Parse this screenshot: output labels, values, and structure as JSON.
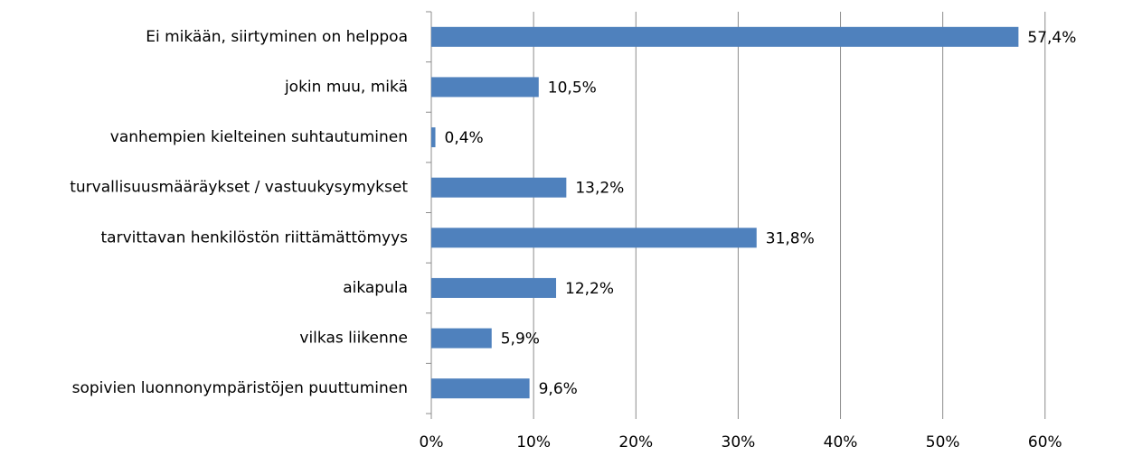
{
  "chart_data": {
    "type": "bar",
    "orientation": "horizontal",
    "categories": [
      "Ei mikään, siirtyminen on helppoa",
      "jokin muu, mikä",
      "vanhempien kielteinen suhtautuminen",
      "turvallisuusmääräykset / vastuukysymykset",
      "tarvittavan henkilöstön riittämättömyys",
      "aikapula",
      "vilkas liikenne",
      "sopivien luonnonympäristöjen puuttuminen"
    ],
    "values": [
      57.4,
      10.5,
      0.4,
      13.2,
      31.8,
      12.2,
      5.9,
      9.6
    ],
    "value_labels": [
      "57,4%",
      "10,5%",
      "0,4%",
      "13,2%",
      "31,8%",
      "12,2%",
      "5,9%",
      "9,6%"
    ],
    "color": "#4f81bd",
    "xlim": [
      0,
      67
    ],
    "xticks": [
      {
        "value": 0,
        "label": "0%"
      },
      {
        "value": 10,
        "label": "10%"
      },
      {
        "value": 20,
        "label": "20%"
      },
      {
        "value": 30,
        "label": "30%"
      },
      {
        "value": 40,
        "label": "40%"
      },
      {
        "value": 50,
        "label": "50%"
      },
      {
        "value": 60,
        "label": "60%"
      }
    ],
    "grid": true
  }
}
